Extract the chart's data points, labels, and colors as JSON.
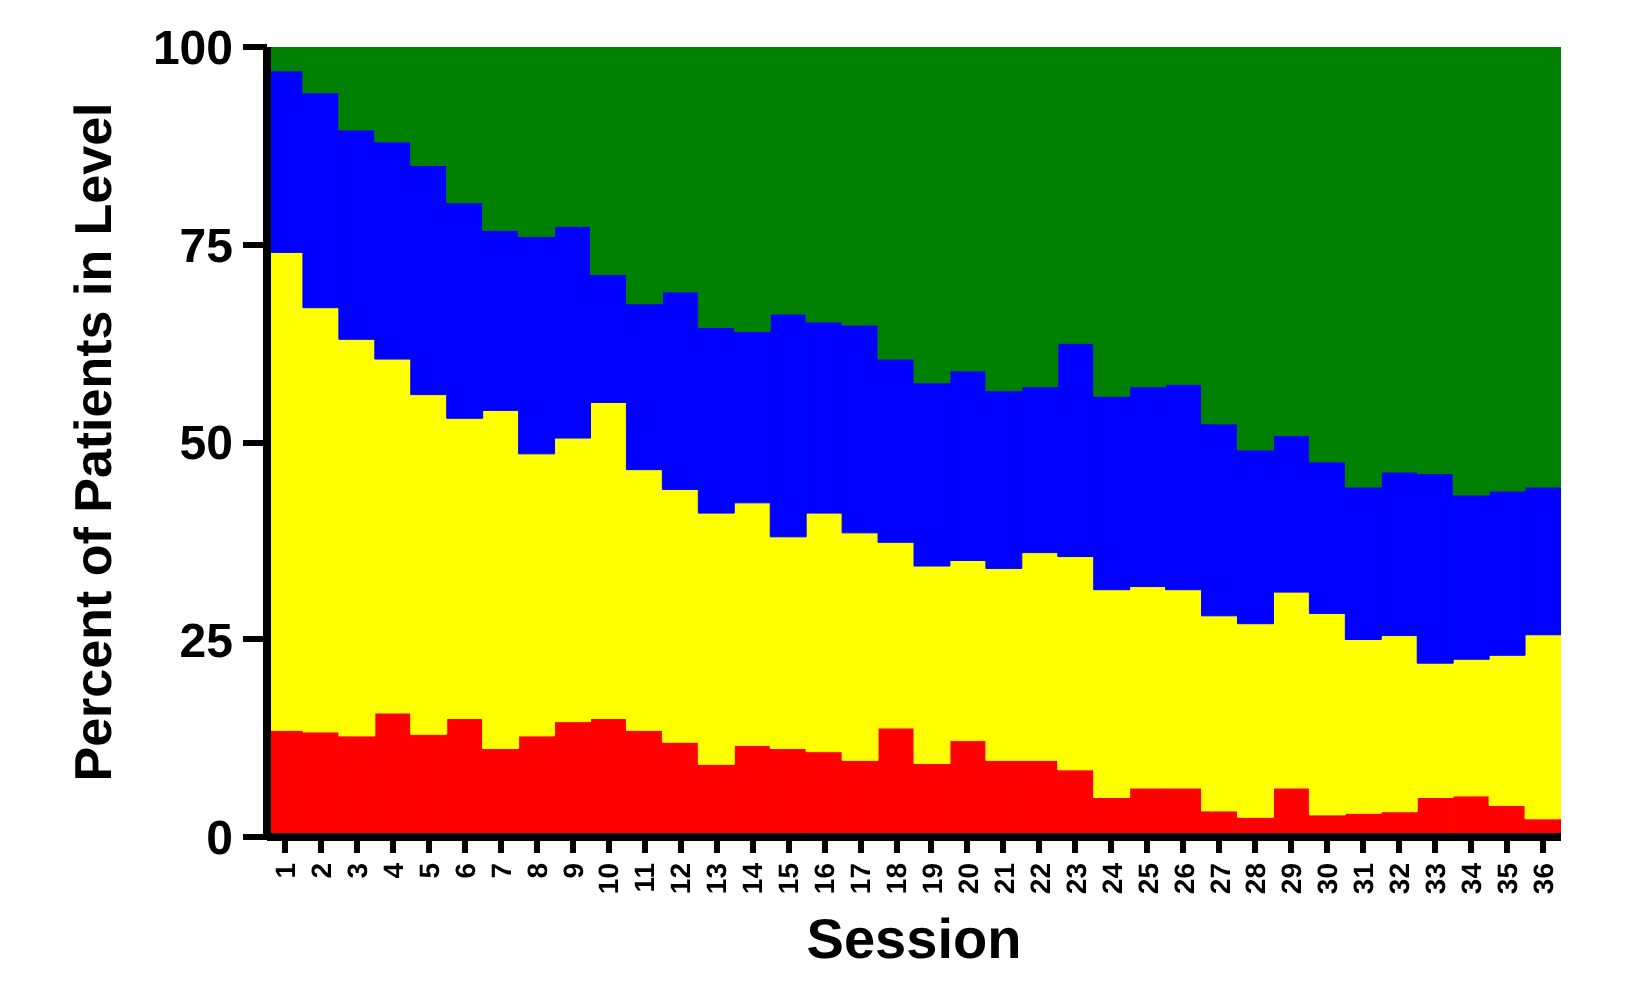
{
  "chart_data": {
    "type": "bar",
    "stacked": true,
    "xlabel": "Session",
    "ylabel": "Percent of Patients in Level",
    "categories": [
      "1",
      "2",
      "3",
      "4",
      "5",
      "6",
      "7",
      "8",
      "9",
      "10",
      "11",
      "12",
      "13",
      "14",
      "15",
      "16",
      "17",
      "18",
      "19",
      "20",
      "21",
      "22",
      "23",
      "24",
      "25",
      "26",
      "27",
      "28",
      "29",
      "30",
      "31",
      "32",
      "33",
      "34",
      "35",
      "36"
    ],
    "series": [
      {
        "color": "#ff0000",
        "values": [
          13.5,
          13.3,
          12.8,
          15.7,
          13,
          15,
          11.2,
          12.8,
          14.6,
          15,
          13.5,
          12,
          9.2,
          11.6,
          11.2,
          10.8,
          9.7,
          13.8,
          9.3,
          12.2,
          9.7,
          9.7,
          8.5,
          5,
          6.2,
          6.2,
          3.3,
          2.5,
          6.2,
          2.8,
          3,
          3.2,
          5,
          5.2,
          4,
          2.3
        ]
      },
      {
        "color": "#ffff00",
        "values": [
          60.5,
          53.7,
          50.2,
          44.8,
          43,
          38,
          42.8,
          35.7,
          35.9,
          40,
          33,
          32,
          31.8,
          30.7,
          26.8,
          30.2,
          28.8,
          23.5,
          25,
          22.8,
          24.3,
          26.3,
          27,
          26.3,
          25.5,
          25.1,
          24.7,
          24.5,
          24.8,
          25.5,
          22,
          22.3,
          17,
          17.3,
          19,
          23.3
        ]
      },
      {
        "color": "#0000ff",
        "values": [
          23,
          27.2,
          26.5,
          27.5,
          29,
          27.3,
          22.8,
          27.5,
          26.8,
          16.2,
          21,
          25,
          23.5,
          21.7,
          28.2,
          24.2,
          26.3,
          23.2,
          23.2,
          24,
          22.5,
          21,
          27,
          24.5,
          25.3,
          26,
          24.3,
          22,
          19.8,
          19.2,
          19.3,
          20.7,
          24,
          20.8,
          20.8,
          18.7
        ]
      },
      {
        "color": "#008000",
        "values": [
          3,
          5.8,
          10.5,
          12,
          15,
          19.7,
          23.2,
          24,
          22.7,
          28.8,
          32.5,
          31,
          35.5,
          36,
          33.8,
          34.8,
          35.2,
          39.5,
          42.5,
          41,
          43.5,
          43,
          37.5,
          44.2,
          43,
          42.7,
          47.7,
          51,
          49.2,
          52.5,
          55.7,
          53.8,
          54,
          56.7,
          56.2,
          55.7
        ]
      }
    ],
    "ylim": [
      0,
      100
    ],
    "yticks": [
      0,
      25,
      50,
      75,
      100
    ]
  }
}
